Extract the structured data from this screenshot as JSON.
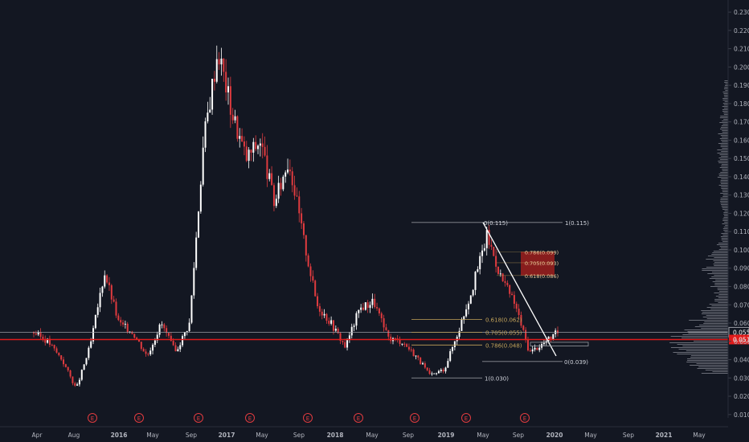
{
  "colors": {
    "background": "#131722",
    "up": "#ffffff",
    "down": "#e03b3f",
    "grid": "#1e2230",
    "axis_text": "#b2b5be",
    "support_line": "#e01b1b",
    "fib_line": "#8d8f96",
    "fib_gold": "#c4a45a",
    "zone_fill": "#8e1d1d",
    "price_badge": "#e01b1b",
    "volume_profile": "#b2b5be"
  },
  "chart_data": {
    "type": "candlestick",
    "title": "",
    "xlabel": "",
    "ylabel": "",
    "ylim": [
      0.0,
      0.235
    ],
    "grid": false,
    "y_ticks": [
      "0.230",
      "0.220",
      "0.210",
      "0.200",
      "0.190",
      "0.180",
      "0.170",
      "0.160",
      "0.150",
      "0.140",
      "0.130",
      "0.120",
      "0.110",
      "0.100",
      "0.090",
      "0.080",
      "0.070",
      "0.060",
      "0.050",
      "0.040",
      "0.030",
      "0.020",
      "0.010"
    ],
    "x_ticks": [
      "Apr",
      "Aug",
      "2016",
      "May",
      "Sep",
      "2017",
      "May",
      "Sep",
      "2018",
      "May",
      "Sep",
      "2019",
      "May",
      "Sep",
      "2020",
      "May",
      "Sep",
      "2021",
      "May"
    ],
    "price_path": [
      [
        "Apr",
        0.055
      ],
      [
        "Apr",
        0.05
      ],
      [
        "Apr",
        0.04
      ],
      [
        "Aug",
        0.024
      ],
      [
        "Aug",
        0.048
      ],
      [
        "Aug",
        0.088
      ],
      [
        "Aug",
        0.06
      ],
      [
        "2016",
        0.055
      ],
      [
        "2016",
        0.042
      ],
      [
        "2016",
        0.06
      ],
      [
        "May",
        0.044
      ],
      [
        "May",
        0.06
      ],
      [
        "May",
        0.16
      ],
      [
        "Sep",
        0.21
      ],
      [
        "Sep",
        0.175
      ],
      [
        "Sep",
        0.15
      ],
      [
        "2017",
        0.16
      ],
      [
        "2017",
        0.125
      ],
      [
        "2017",
        0.15
      ],
      [
        "May",
        0.108
      ],
      [
        "May",
        0.07
      ],
      [
        "Sep",
        0.06
      ],
      [
        "Sep",
        0.047
      ],
      [
        "2018",
        0.068
      ],
      [
        "2018",
        0.072
      ],
      [
        "May",
        0.052
      ],
      [
        "May",
        0.05
      ],
      [
        "Sep",
        0.042
      ],
      [
        "Sep",
        0.031
      ],
      [
        "2019",
        0.035
      ],
      [
        "2019",
        0.056
      ],
      [
        "May",
        0.08
      ],
      [
        "May",
        0.108
      ],
      [
        "May",
        0.085
      ],
      [
        "Sep",
        0.07
      ],
      [
        "Sep",
        0.044
      ],
      [
        "2020",
        0.049
      ],
      [
        "2020",
        0.055
      ]
    ],
    "current_price_label": "0.051",
    "marker_price_label": "0.055",
    "support_level": 0.051,
    "upper_level": 0.055,
    "fib_top": [
      {
        "label": "0(0.115)",
        "value": 0.115
      },
      {
        "label": "1(0.115)",
        "value": 0.115
      },
      {
        "label": "0.618(0.062)",
        "value": 0.062
      },
      {
        "label": "0.705(0.055)",
        "value": 0.055
      },
      {
        "label": "0.786(0.048)",
        "value": 0.048
      },
      {
        "label": "0(0.039)",
        "value": 0.039
      },
      {
        "label": "1(0.030)",
        "value": 0.03
      }
    ],
    "fib_zone": [
      {
        "label": "0.786(0.099)",
        "value": 0.099
      },
      {
        "label": "0.705(0.093)",
        "value": 0.093
      },
      {
        "label": "0.618(0.086)",
        "value": 0.086
      }
    ],
    "earnings_markers": [
      "E",
      "E",
      "E",
      "E",
      "E",
      "E",
      "E",
      "E",
      "E"
    ]
  }
}
